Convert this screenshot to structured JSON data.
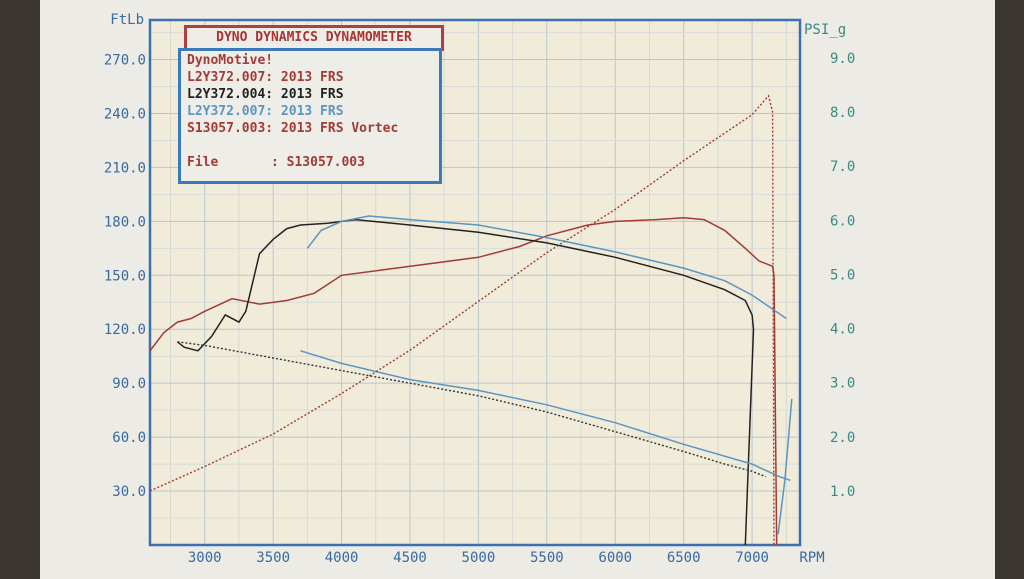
{
  "chart_data": {
    "type": "line",
    "title": "DYNO DYNAMICS DYNAMOMETER",
    "legend": {
      "placement": "top-left",
      "header": "DynoMotive!",
      "entries": [
        {
          "text": "L2Y372.007: 2013 FRS",
          "color": "#a23a35"
        },
        {
          "text": "L2Y372.004: 2013 FRS",
          "color": "#222222"
        },
        {
          "text": "L2Y372.007: 2013 FRS",
          "color": "#5b95c4"
        },
        {
          "text": "S13057.003: 2013 FRS Vortec",
          "color": "#a23a35"
        }
      ],
      "file_label": "File",
      "file_value": ": S13057.003"
    },
    "ylabel_left": "FtLb",
    "ylabel_right": "PSI_g",
    "xlabel": "RPM",
    "xlim": [
      2600,
      7350
    ],
    "ylim_left": [
      0,
      292
    ],
    "ylim_right": [
      0,
      9.7
    ],
    "xticks": [
      "3000",
      "3500",
      "4000",
      "4500",
      "5000",
      "5500",
      "6000",
      "6500",
      "7000"
    ],
    "yticks_left": [
      "30.0",
      "60.0",
      "90.0",
      "120.0",
      "150.0",
      "180.0",
      "210.0",
      "240.0",
      "270.0"
    ],
    "yticks_right": [
      "1.0",
      "2.0",
      "3.0",
      "4.0",
      "5.0",
      "6.0",
      "7.0",
      "8.0",
      "9.0"
    ],
    "grid": true,
    "series": [
      {
        "axis": "left",
        "color": "#a23a35",
        "style": "solid",
        "x": [
          2600,
          2700,
          2800,
          2900,
          3000,
          3200,
          3400,
          3600,
          3800,
          4000,
          4300,
          4600,
          5000,
          5300,
          5500,
          5800,
          6000,
          6300,
          6500,
          6650,
          6800,
          6950,
          7050,
          7150,
          7160,
          7180
        ],
        "y": [
          108,
          118,
          124,
          126,
          130,
          137,
          134,
          136,
          140,
          150,
          153,
          156,
          160,
          166,
          172,
          178,
          180,
          181,
          182,
          181,
          175,
          165,
          158,
          155,
          150,
          0
        ]
      },
      {
        "axis": "left",
        "color": "#222222",
        "style": "solid",
        "x": [
          2800,
          2850,
          2950,
          3050,
          3150,
          3250,
          3300,
          3400,
          3500,
          3600,
          3700,
          3900,
          4100,
          4500,
          5000,
          5500,
          6000,
          6500,
          6800,
          6950,
          7000,
          7010,
          6950
        ],
        "y": [
          113,
          110,
          108,
          116,
          128,
          124,
          130,
          162,
          170,
          176,
          178,
          179,
          181,
          178,
          174,
          168,
          160,
          150,
          142,
          136,
          128,
          120,
          0
        ]
      },
      {
        "axis": "left",
        "color": "#5b95c4",
        "style": "solid",
        "x": [
          3750,
          3850,
          4000,
          4200,
          4500,
          5000,
          5500,
          6000,
          6500,
          6800,
          7000,
          7250
        ],
        "y": [
          165,
          175,
          180,
          183,
          181,
          178,
          171,
          163,
          154,
          147,
          139,
          126
        ]
      },
      {
        "axis": "left",
        "color": "#333333",
        "style": "dotted",
        "x": [
          2800,
          3000,
          3500,
          4000,
          4500,
          5000,
          5500,
          6000,
          6500,
          6800,
          7000,
          7100
        ],
        "y": [
          113,
          111,
          104,
          97,
          90,
          83,
          74,
          63,
          52,
          45,
          41,
          38
        ]
      },
      {
        "axis": "left",
        "color": "#5b95c4",
        "style": "solid",
        "x": [
          3700,
          4000,
          4500,
          5000,
          5500,
          6000,
          6500,
          7000,
          7200,
          7280
        ],
        "y": [
          108,
          101,
          92,
          86,
          78,
          68,
          56,
          45,
          38,
          36
        ]
      },
      {
        "axis": "right",
        "color": "#a23a35",
        "style": "dotted",
        "x": [
          2600,
          3000,
          3500,
          4000,
          4500,
          5000,
          5500,
          6000,
          6500,
          7000,
          7120,
          7150,
          7160
        ],
        "y": [
          1.0,
          1.45,
          2.05,
          2.8,
          3.6,
          4.5,
          5.4,
          6.2,
          7.1,
          7.95,
          8.3,
          8.0,
          0.0
        ]
      },
      {
        "axis": "right",
        "color": "#5b95c4",
        "style": "solid",
        "x": [
          7190,
          7240,
          7290
        ],
        "y": [
          0.2,
          1.2,
          2.7
        ]
      }
    ]
  }
}
